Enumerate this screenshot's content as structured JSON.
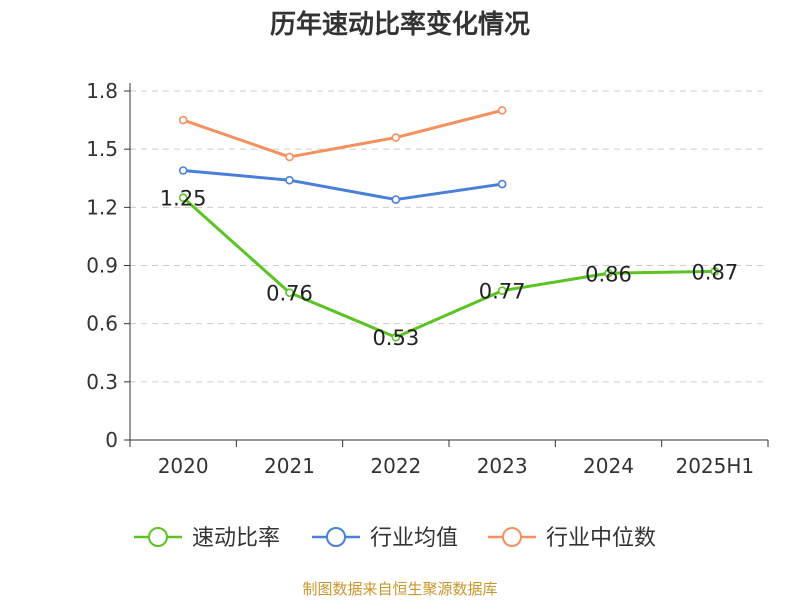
{
  "chart_data": {
    "type": "line",
    "title": "历年速动比率变化情况",
    "categories": [
      "2020",
      "2021",
      "2022",
      "2023",
      "2024",
      "2025H1"
    ],
    "series": [
      {
        "name": "速动比率",
        "values": [
          1.25,
          0.76,
          0.53,
          0.77,
          0.86,
          0.87
        ],
        "color": "#5cc324",
        "labels": [
          "1.25",
          "0.76",
          "0.53",
          "0.77",
          "0.86",
          "0.87"
        ]
      },
      {
        "name": "行业均值",
        "values": [
          1.39,
          1.34,
          1.24,
          1.32,
          null,
          null
        ],
        "color": "#4a7fd9"
      },
      {
        "name": "行业中位数",
        "values": [
          1.65,
          1.46,
          1.56,
          1.7,
          null,
          null
        ],
        "color": "#f4915e"
      }
    ],
    "y_ticks": [
      "0",
      "0.3",
      "0.6",
      "0.9",
      "1.2",
      "1.5",
      "1.8"
    ],
    "ylim": [
      0,
      1.8
    ],
    "grid": "dashed horizontal",
    "legend_position": "bottom"
  },
  "source_note": "制图数据来自恒生聚源数据库"
}
